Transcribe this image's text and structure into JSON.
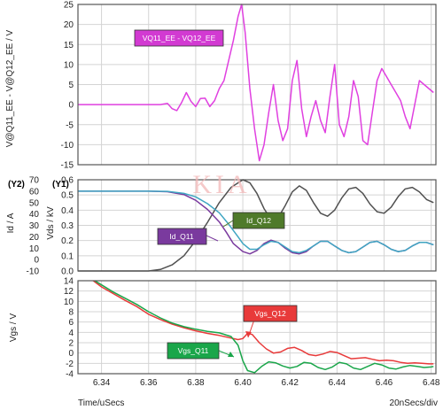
{
  "watermark": "KIA",
  "colors": {
    "magenta": "#e040e0",
    "dark": "#505050",
    "cyan": "#3fa6c2",
    "purple": "#7a3a9e",
    "red": "#e83a3a",
    "green": "#1aa64a",
    "olive": "#4f7a2a",
    "grid": "#d4d4d4",
    "frame": "#555555"
  },
  "chart_data": [
    {
      "type": "line",
      "panel": "top",
      "ylabel": "V@Q11_EE - V@Q12_EE / V",
      "ylim": [
        -15,
        25
      ],
      "yticks": [
        "25",
        "20",
        "15",
        "10",
        "5",
        "0",
        "-5",
        "-10",
        "-15"
      ],
      "grid": true,
      "legend_box": "VQ11_EE - VQ12_EE",
      "series": [
        {
          "name": "VQ11_EE - VQ12_EE",
          "color": "magenta",
          "x": [
            6.33,
            6.365,
            6.368,
            6.37,
            6.372,
            6.374,
            6.376,
            6.378,
            6.38,
            6.382,
            6.384,
            6.386,
            6.388,
            6.39,
            6.392,
            6.394,
            6.396,
            6.398,
            6.3995,
            6.401,
            6.403,
            6.405,
            6.407,
            6.409,
            6.411,
            6.413,
            6.415,
            6.417,
            6.419,
            6.421,
            6.423,
            6.425,
            6.427,
            6.429,
            6.431,
            6.433,
            6.435,
            6.437,
            6.439,
            6.441,
            6.443,
            6.445,
            6.447,
            6.449,
            6.451,
            6.453,
            6.455,
            6.457,
            6.459,
            6.461,
            6.463,
            6.465,
            6.467,
            6.469,
            6.471,
            6.473,
            6.475,
            6.477,
            6.479,
            6.481
          ],
          "y": [
            0,
            0,
            0.3,
            -1,
            -1.5,
            0.5,
            3,
            0.8,
            -0.5,
            1.5,
            1.6,
            -0.5,
            1,
            4,
            6,
            11,
            16,
            22,
            25,
            18,
            4,
            -6,
            -14,
            -10,
            -2,
            5,
            -4,
            -9,
            -6,
            6,
            11,
            -1,
            -8,
            -3,
            1,
            -4,
            -7,
            2,
            10,
            -5,
            -8,
            -3,
            6,
            2,
            -9,
            -10,
            -2,
            6,
            9,
            7,
            5,
            3,
            1,
            -3,
            -6,
            0,
            6,
            5,
            4,
            3
          ]
        }
      ]
    },
    {
      "type": "line",
      "panel": "middle",
      "ylabel_y2": "Id / A",
      "ylabel_y1": "Vds / kV",
      "axis_header_y2": "(Y2)",
      "axis_header_y1": "(Y1)",
      "ylim": [
        0,
        0.6
      ],
      "yticks_y1": [
        "0.6",
        "0.5",
        "0.4",
        "0.3",
        "0.2",
        "0.1",
        "0.0"
      ],
      "yticks_y2": [
        "70",
        "60",
        "50",
        "40",
        "30",
        "20",
        "10",
        "0",
        "-10"
      ],
      "grid": true,
      "labels": [
        "Id_Q12",
        "Id_Q11"
      ],
      "series": [
        {
          "name": "Vds",
          "color": "dark",
          "x": [
            6.33,
            6.36,
            6.365,
            6.37,
            6.375,
            6.38,
            6.385,
            6.39,
            6.395,
            6.4,
            6.403,
            6.406,
            6.409,
            6.412,
            6.415,
            6.418,
            6.421,
            6.424,
            6.427,
            6.43,
            6.433,
            6.436,
            6.439,
            6.442,
            6.445,
            6.448,
            6.451,
            6.454,
            6.457,
            6.46,
            6.463,
            6.466,
            6.469,
            6.472,
            6.475,
            6.478,
            6.481
          ],
          "y": [
            0,
            0,
            0.01,
            0.04,
            0.1,
            0.2,
            0.32,
            0.45,
            0.55,
            0.6,
            0.58,
            0.51,
            0.41,
            0.34,
            0.35,
            0.43,
            0.52,
            0.56,
            0.53,
            0.45,
            0.38,
            0.36,
            0.4,
            0.48,
            0.54,
            0.55,
            0.51,
            0.44,
            0.39,
            0.38,
            0.42,
            0.49,
            0.54,
            0.55,
            0.52,
            0.47,
            0.45
          ]
        },
        {
          "name": "Id_Q11",
          "color": "purple",
          "x": [
            6.33,
            6.36,
            6.368,
            6.375,
            6.38,
            6.385,
            6.39,
            6.393,
            6.396,
            6.4,
            6.403,
            6.406,
            6.409,
            6.412,
            6.415,
            6.418,
            6.421,
            6.424,
            6.427,
            6.43,
            6.433,
            6.436,
            6.439,
            6.442,
            6.445,
            6.448,
            6.451,
            6.454,
            6.457,
            6.46,
            6.463,
            6.466,
            6.469,
            6.472,
            6.475,
            6.478,
            6.481
          ],
          "y": [
            60,
            60,
            59.5,
            57,
            52,
            44,
            33,
            24,
            14,
            7,
            5,
            8,
            14,
            17,
            15,
            10,
            6,
            5,
            7,
            12,
            16,
            16,
            12,
            8,
            6,
            7,
            11,
            15,
            16,
            13,
            9,
            7,
            8,
            12,
            15,
            15,
            13
          ]
        },
        {
          "name": "Id_Q12",
          "color": "cyan",
          "x": [
            6.33,
            6.36,
            6.368,
            6.375,
            6.38,
            6.385,
            6.39,
            6.394,
            6.398,
            6.4,
            6.403,
            6.406,
            6.409,
            6.412,
            6.415,
            6.418,
            6.421,
            6.424,
            6.427,
            6.43,
            6.433,
            6.436,
            6.439,
            6.442,
            6.445,
            6.448,
            6.451,
            6.454,
            6.457,
            6.46,
            6.463,
            6.466,
            6.469,
            6.472,
            6.475,
            6.478,
            6.481
          ],
          "y": [
            60,
            60,
            59.8,
            58,
            55,
            49,
            41,
            31,
            20,
            14,
            9,
            9,
            13,
            16,
            15,
            11,
            7,
            6,
            8,
            12,
            16,
            16,
            12,
            8,
            6,
            7,
            11,
            15,
            16,
            13,
            9,
            7,
            8,
            12,
            15,
            15,
            13
          ]
        }
      ]
    },
    {
      "type": "line",
      "panel": "bottom",
      "ylabel": "Vgs / V",
      "xlabel": "Time/uSecs",
      "xnote": "20nSecs/div",
      "ylim": [
        -4,
        14
      ],
      "yticks": [
        "14",
        "12",
        "10",
        "8",
        "6",
        "4",
        "2",
        "0",
        "-2",
        "-4"
      ],
      "xlim": [
        6.33,
        6.482
      ],
      "xticks": [
        "6.34",
        "6.36",
        "6.38",
        "6.40",
        "6.42",
        "6.44",
        "6.46",
        "6.48"
      ],
      "grid": true,
      "labels": [
        "Vgs_Q12",
        "Vgs_Q11"
      ],
      "series": [
        {
          "name": "Vgs_Q12",
          "color": "red",
          "x": [
            6.33,
            6.335,
            6.34,
            6.345,
            6.35,
            6.355,
            6.36,
            6.365,
            6.37,
            6.375,
            6.38,
            6.385,
            6.39,
            6.394,
            6.398,
            6.4,
            6.402,
            6.404,
            6.407,
            6.41,
            6.413,
            6.416,
            6.419,
            6.422,
            6.425,
            6.428,
            6.431,
            6.434,
            6.437,
            6.44,
            6.443,
            6.446,
            6.449,
            6.452,
            6.455,
            6.458,
            6.461,
            6.464,
            6.467,
            6.47,
            6.473,
            6.476,
            6.479,
            6.481
          ],
          "y": [
            15.5,
            14.5,
            12.8,
            11.5,
            10.2,
            9,
            7.5,
            6.5,
            5.6,
            4.9,
            4.3,
            3.8,
            3.4,
            3.0,
            2.6,
            2.8,
            3.8,
            3.6,
            2.0,
            0.8,
            0.0,
            0.2,
            0.9,
            1.1,
            0.5,
            -0.3,
            -0.5,
            -0.2,
            0.3,
            0.1,
            -0.5,
            -1.1,
            -1.0,
            -0.9,
            -1.2,
            -1.5,
            -1.4,
            -1.5,
            -1.8,
            -2.0,
            -1.9,
            -2.0,
            -2.1,
            -2.1
          ]
        },
        {
          "name": "Vgs_Q11",
          "color": "green",
          "x": [
            6.33,
            6.335,
            6.34,
            6.345,
            6.35,
            6.355,
            6.36,
            6.365,
            6.37,
            6.375,
            6.38,
            6.385,
            6.39,
            6.395,
            6.398,
            6.4,
            6.402,
            6.405,
            6.408,
            6.411,
            6.414,
            6.417,
            6.42,
            6.423,
            6.426,
            6.429,
            6.432,
            6.435,
            6.438,
            6.441,
            6.444,
            6.447,
            6.45,
            6.453,
            6.456,
            6.459,
            6.462,
            6.465,
            6.468,
            6.471,
            6.474,
            6.477,
            6.48,
            6.481
          ],
          "y": [
            15.5,
            14.6,
            13.2,
            11.8,
            10.6,
            9.4,
            8.0,
            6.8,
            5.8,
            5.1,
            4.6,
            4.2,
            3.9,
            3.2,
            1.5,
            -1.5,
            -3.4,
            -3.8,
            -2.6,
            -1.7,
            -1.9,
            -2.5,
            -2.9,
            -2.6,
            -1.8,
            -2.0,
            -2.8,
            -3.2,
            -2.7,
            -1.8,
            -2.1,
            -2.9,
            -3.2,
            -2.6,
            -2.0,
            -2.3,
            -2.9,
            -3.1,
            -2.7,
            -2.4,
            -2.6,
            -2.8,
            -2.7,
            -2.6
          ]
        }
      ]
    }
  ]
}
